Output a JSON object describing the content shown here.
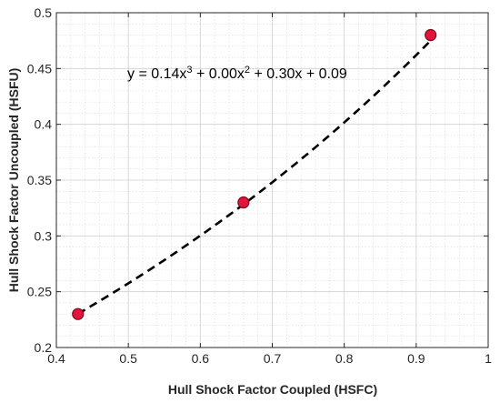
{
  "chart_data": {
    "type": "scatter",
    "xlabel": "Hull Shock Factor Coupled (HSFC)",
    "ylabel": "Hull Shock Factor Uncoupled (HSFU)",
    "xlim": [
      0.4,
      1.0
    ],
    "ylim": [
      0.2,
      0.5
    ],
    "xticks": [
      "0.4",
      "0.5",
      "0.6",
      "0.7",
      "0.8",
      "0.9",
      "1"
    ],
    "yticks": [
      "0.2",
      "0.25",
      "0.3",
      "0.35",
      "0.4",
      "0.45",
      "0.5"
    ],
    "grid": true,
    "grid_minor": true,
    "points": [
      {
        "x": 0.43,
        "y": 0.23
      },
      {
        "x": 0.66,
        "y": 0.33
      },
      {
        "x": 0.92,
        "y": 0.48
      }
    ],
    "point_color": "#e3143a",
    "point_edge_color": "#7a0a1e",
    "fit": {
      "style": "dashed",
      "color": "#000000",
      "x_range": [
        0.43,
        0.92
      ]
    },
    "annotation": {
      "pre": "y = 0.14x",
      "sup1": "3",
      "mid": " + 0.00x",
      "sup2": "2",
      "post": " + 0.30x + 0.09"
    }
  }
}
